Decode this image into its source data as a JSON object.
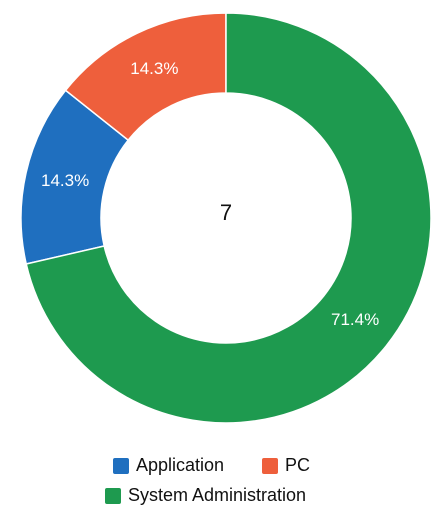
{
  "chart_data": {
    "type": "donut",
    "categories": [
      "Application",
      "PC",
      "System Administration"
    ],
    "values": [
      14.3,
      14.3,
      71.4
    ],
    "value_labels": [
      "14.3%",
      "14.3%",
      "71.4%"
    ],
    "colors": [
      "#1f6fbf",
      "#ee5f3c",
      "#1e9a4f"
    ],
    "total": 7
  }
}
